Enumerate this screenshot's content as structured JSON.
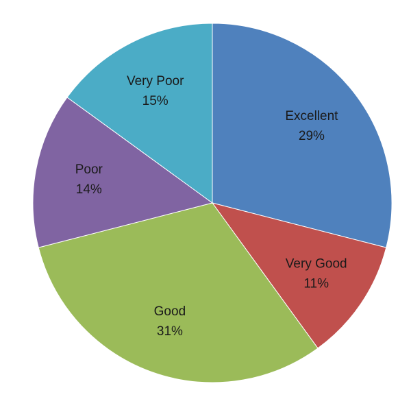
{
  "chart_data": {
    "type": "pie",
    "title": "",
    "start": "12 o'clock",
    "direction": "clockwise",
    "slices": [
      {
        "name": "Excellent",
        "value": 29,
        "label": "29%",
        "color": "#4F81BD"
      },
      {
        "name": "Very Good",
        "value": 11,
        "label": "11%",
        "color": "#C0504D"
      },
      {
        "name": "Good",
        "value": 31,
        "label": "31%",
        "color": "#9BBB59"
      },
      {
        "name": "Poor",
        "value": 14,
        "label": "14%",
        "color": "#8064A2"
      },
      {
        "name": "Very Poor",
        "value": 15,
        "label": "15%",
        "color": "#4BACC6"
      }
    ],
    "legend": "none"
  }
}
